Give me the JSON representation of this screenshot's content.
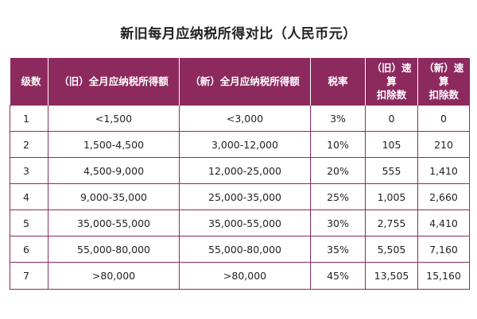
{
  "title": "新旧每月应纳税所得对比（人民币元）",
  "table": {
    "headers": {
      "level": "级数",
      "old_income": "（旧）全月应纳税所得额",
      "new_income": "（新）全月应纳税所得额",
      "rate": "税率",
      "old_deduction_line1": "（旧）速算",
      "old_deduction_line2": "扣除数",
      "new_deduction_line1": "（新）速算",
      "new_deduction_line2": "扣除数"
    },
    "rows": [
      {
        "level": "1",
        "old_income": "<1,500",
        "new_income": "<3,000",
        "rate": "3%",
        "old_deduction": "0",
        "new_deduction": "0"
      },
      {
        "level": "2",
        "old_income": "1,500-4,500",
        "new_income": "3,000-12,000",
        "rate": "10%",
        "old_deduction": "105",
        "new_deduction": "210"
      },
      {
        "level": "3",
        "old_income": "4,500-9,000",
        "new_income": "12,000-25,000",
        "rate": "20%",
        "old_deduction": "555",
        "new_deduction": "1,410"
      },
      {
        "level": "4",
        "old_income": "9,000-35,000",
        "new_income": "25,000-35,000",
        "rate": "25%",
        "old_deduction": "1,005",
        "new_deduction": "2,660"
      },
      {
        "level": "5",
        "old_income": "35,000-55,000",
        "new_income": "35,000-55,000",
        "rate": "30%",
        "old_deduction": "2,755",
        "new_deduction": "4,410"
      },
      {
        "level": "6",
        "old_income": "55,000-80,000",
        "new_income": "55,000-80,000",
        "rate": "35%",
        "old_deduction": "5,505",
        "new_deduction": "7,160"
      },
      {
        "level": "7",
        "old_income": ">80,000",
        "new_income": ">80,000",
        "rate": "45%",
        "old_deduction": "13,505",
        "new_deduction": "15,160"
      }
    ]
  },
  "colors": {
    "header_background": "#8c2a5d",
    "header_text": "#ffffff",
    "border": "#8c2a5d",
    "body_text": "#222222"
  }
}
